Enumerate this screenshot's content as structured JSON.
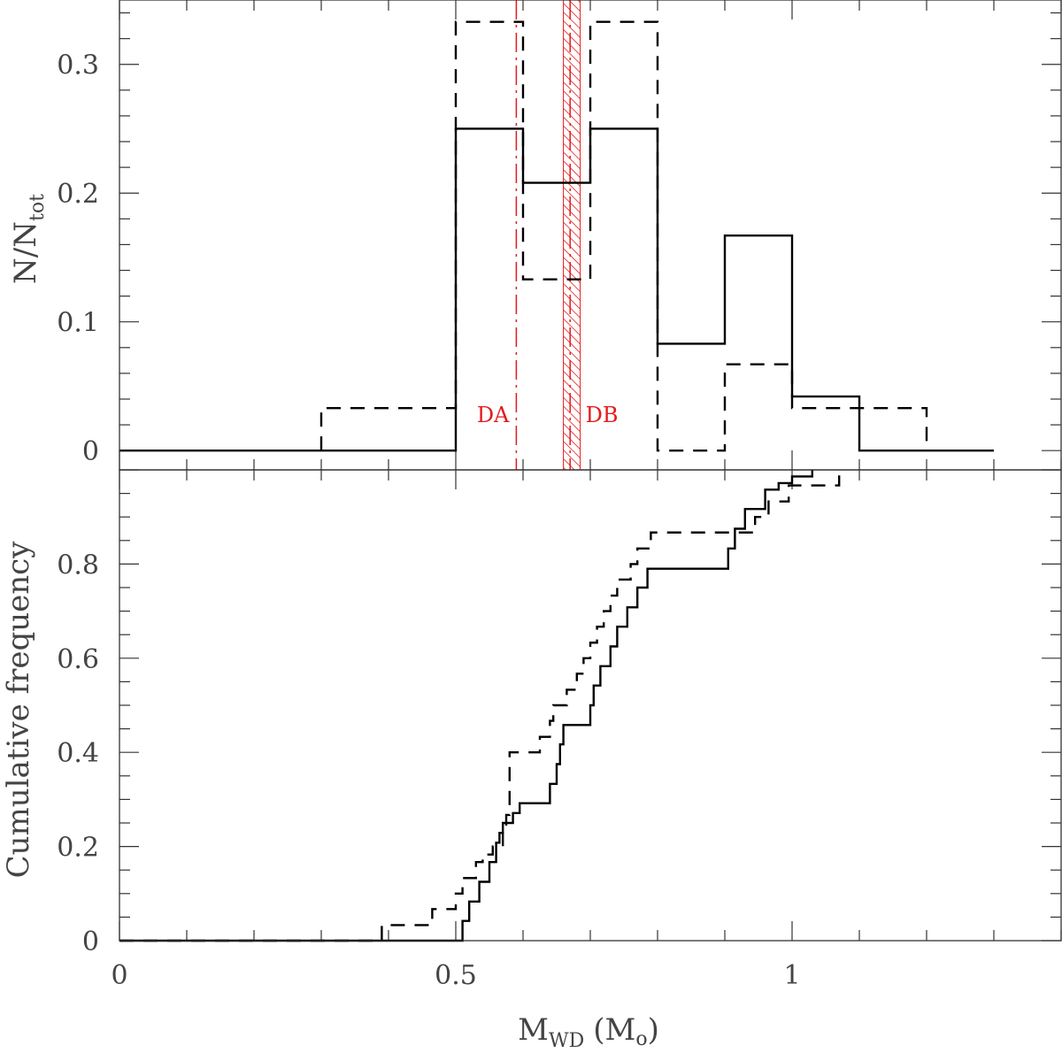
{
  "chart_data": [
    {
      "type": "histogram",
      "panel": "top",
      "ylabel_main": "N/N",
      "ylabel_sub": "tot",
      "xlim": [
        0,
        1.4
      ],
      "ylim": [
        -0.015,
        0.35
      ],
      "yticks": [
        0,
        0.1,
        0.2,
        0.3
      ],
      "ytick_labels": [
        "0",
        "0.1",
        "0.2",
        "0.3"
      ],
      "series": [
        {
          "style": "solid",
          "edges": [
            0,
            0.5,
            0.6,
            0.7,
            0.8,
            0.9,
            1.0,
            1.1,
            1.3
          ],
          "values": [
            0,
            0.25,
            0.208,
            0.25,
            0.083,
            0.167,
            0.042,
            0
          ]
        },
        {
          "style": "dashed",
          "edges": [
            0.3,
            0.5,
            0.6,
            0.7,
            0.8,
            0.9,
            1.0,
            1.2
          ],
          "values": [
            0.033,
            0.333,
            0.133,
            0.333,
            0,
            0.067,
            0.033
          ]
        }
      ],
      "annotations": [
        {
          "label": "DA",
          "x": 0.59,
          "style": "dash-dot",
          "color": "#e41a1c"
        },
        {
          "label": "DB",
          "x": 0.67,
          "x_range": [
            0.66,
            0.685
          ],
          "style": "hatched",
          "color": "#e41a1c"
        }
      ]
    },
    {
      "type": "step",
      "panel": "bottom",
      "ylabel": "Cumulative frequency",
      "xlabel_main": "M",
      "xlabel_sub": "WD",
      "xlabel_unit_main": "(M",
      "xlabel_unit_sub": "o",
      "xlabel_unit_close": ")",
      "xlim": [
        0,
        1.4
      ],
      "ylim": [
        0,
        1.0
      ],
      "xticks": [
        0,
        0.5,
        1
      ],
      "xtick_labels": [
        "0",
        "0.5",
        "1"
      ],
      "yticks": [
        0,
        0.2,
        0.4,
        0.6,
        0.8
      ],
      "ytick_labels": [
        "0",
        "0.2",
        "0.4",
        "0.6",
        "0.8"
      ],
      "series": [
        {
          "style": "solid",
          "x": [
            0,
            0.51,
            0.52,
            0.535,
            0.55,
            0.56,
            0.565,
            0.57,
            0.575,
            0.585,
            0.595,
            0.61,
            0.64,
            0.65,
            0.655,
            0.66,
            0.665,
            0.7,
            0.705,
            0.715,
            0.73,
            0.74,
            0.755,
            0.77,
            0.785,
            0.82,
            0.905,
            0.915,
            0.93,
            0.96,
            0.98,
            1.0,
            1.03
          ],
          "y": [
            0,
            0.042,
            0.083,
            0.125,
            0.167,
            0.208,
            0.229,
            0.25,
            0.25,
            0.271,
            0.292,
            0.292,
            0.333,
            0.375,
            0.417,
            0.458,
            0.458,
            0.5,
            0.542,
            0.583,
            0.625,
            0.667,
            0.708,
            0.75,
            0.79,
            0.79,
            0.833,
            0.875,
            0.917,
            0.958,
            0.972,
            0.986,
            1.0
          ]
        },
        {
          "style": "dashed",
          "x": [
            0,
            0.39,
            0.465,
            0.5,
            0.51,
            0.53,
            0.54,
            0.555,
            0.565,
            0.57,
            0.575,
            0.58,
            0.595,
            0.625,
            0.64,
            0.645,
            0.665,
            0.67,
            0.68,
            0.69,
            0.7,
            0.71,
            0.72,
            0.73,
            0.74,
            0.76,
            0.77,
            0.79,
            0.92,
            0.945,
            0.95,
            0.965,
            0.99,
            0.995,
            1.07
          ],
          "y": [
            0,
            0.033,
            0.067,
            0.1,
            0.133,
            0.167,
            0.183,
            0.2,
            0.2,
            0.233,
            0.267,
            0.4,
            0.4,
            0.433,
            0.467,
            0.5,
            0.533,
            0.533,
            0.567,
            0.6,
            0.633,
            0.667,
            0.7,
            0.733,
            0.767,
            0.8,
            0.833,
            0.867,
            0.867,
            0.9,
            0.9,
            0.933,
            0.933,
            0.967,
            1.0
          ]
        }
      ]
    }
  ]
}
